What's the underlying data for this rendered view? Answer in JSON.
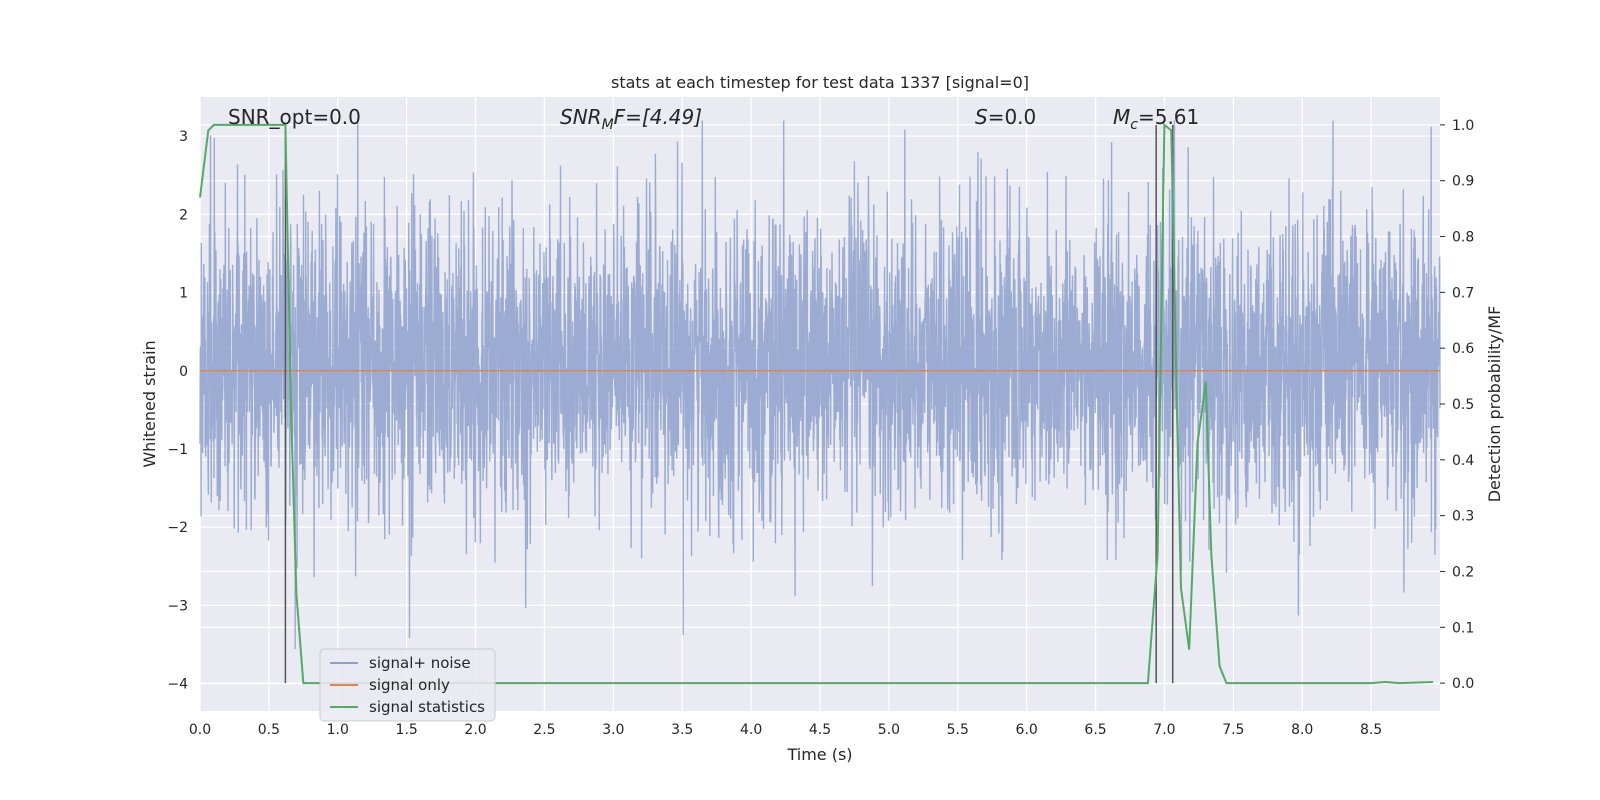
{
  "chart_data": {
    "type": "line",
    "title": "stats at each timestep for test data 1337 [signal=0]",
    "xlabel": "Time (s)",
    "ylabel_left": "Whitened strain",
    "ylabel_right": "Detection probability/MF",
    "xlim": [
      0.0,
      9.0
    ],
    "ylim_left": [
      -4.35,
      3.5
    ],
    "ylim_right": [
      -0.05,
      1.05
    ],
    "xticks": [
      "0.0",
      "0.5",
      "1.0",
      "1.5",
      "2.0",
      "2.5",
      "3.0",
      "3.5",
      "4.0",
      "4.5",
      "5.0",
      "5.5",
      "6.0",
      "6.5",
      "7.0",
      "7.5",
      "8.0",
      "8.5"
    ],
    "yticks_left": [
      "3",
      "2",
      "1",
      "0",
      "−1",
      "−2",
      "−3",
      "−4"
    ],
    "yticks_right": [
      "1.0",
      "0.9",
      "0.8",
      "0.7",
      "0.6",
      "0.5",
      "0.4",
      "0.3",
      "0.2",
      "0.1",
      "0.0"
    ],
    "grid": true,
    "legend_position": "lower-left",
    "annotations": {
      "snr_opt": "SNR_opt=0.0",
      "snr_mf_base": "SNR",
      "snr_mf_sub": "M",
      "snr_mf_rest": "F=[4.49]",
      "s_var": "S",
      "s_rest": "=0.0",
      "mc_base": "M",
      "mc_sub": "c",
      "mc_rest": "=5.61"
    },
    "series": [
      {
        "name": "signal+ noise",
        "axis": "left",
        "color": "#8da0cb",
        "description": "dense whitened noise, roughly between -2 and 2.5 with spikes to about 3.2 and -3.6"
      },
      {
        "name": "signal only",
        "axis": "left",
        "color": "#dd8452",
        "x": [
          0.0,
          9.0
        ],
        "y": [
          0.0,
          0.0
        ]
      },
      {
        "name": "signal statistics",
        "axis": "right",
        "color": "#55a868",
        "x": [
          0.0,
          0.06,
          0.1,
          0.2,
          0.3,
          0.4,
          0.5,
          0.55,
          0.6,
          0.62,
          0.66,
          0.7,
          0.75,
          1.0,
          2.0,
          3.0,
          4.0,
          5.0,
          6.0,
          6.5,
          6.88,
          6.95,
          7.0,
          7.05,
          7.09,
          7.12,
          7.18,
          7.24,
          7.3,
          7.34,
          7.4,
          7.45,
          7.5,
          8.0,
          8.5,
          8.6,
          8.7,
          8.95
        ],
        "y": [
          0.87,
          0.99,
          1.0,
          1.0,
          1.0,
          1.0,
          1.0,
          1.0,
          1.0,
          1.0,
          0.5,
          0.16,
          0.0,
          0.0,
          0.0,
          0.0,
          0.0,
          0.0,
          0.0,
          0.0,
          0.0,
          0.23,
          1.0,
          0.99,
          0.5,
          0.17,
          0.06,
          0.43,
          0.54,
          0.23,
          0.03,
          0.0,
          0.0,
          0.0,
          0.0,
          0.002,
          0.0,
          0.002
        ]
      }
    ],
    "vertical_lines": [
      0.62,
      6.94,
      7.06
    ],
    "vertical_line_color": "#555555"
  }
}
